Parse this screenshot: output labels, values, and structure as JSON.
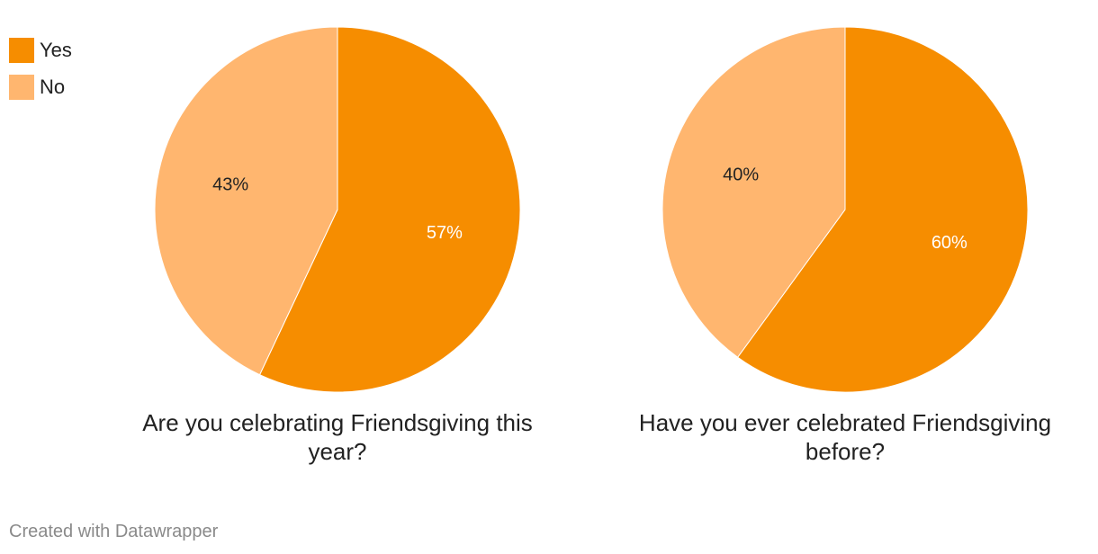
{
  "chart_data": [
    {
      "type": "pie",
      "title": "Are you celebrating Friendsgiving this year?",
      "categories": [
        "Yes",
        "No"
      ],
      "values": [
        57,
        43
      ],
      "value_labels": [
        "57%",
        "43%"
      ],
      "colors": [
        "#f68d00",
        "#ffb66f"
      ]
    },
    {
      "type": "pie",
      "title": "Have you ever celebrated Friendsgiving before?",
      "categories": [
        "Yes",
        "No"
      ],
      "values": [
        60,
        40
      ],
      "value_labels": [
        "60%",
        "40%"
      ],
      "colors": [
        "#f68d00",
        "#ffb66f"
      ]
    }
  ],
  "footer": "Created with Datawrapper"
}
